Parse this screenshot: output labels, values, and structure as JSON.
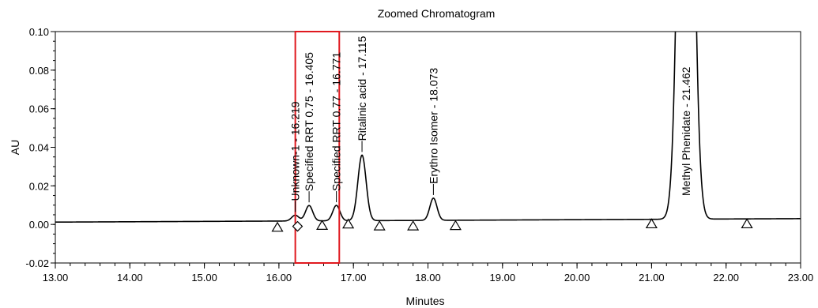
{
  "chart_data": {
    "type": "line",
    "title": "Zoomed Chromatogram",
    "xlabel": "Minutes",
    "ylabel": "AU",
    "xlim": [
      13.0,
      23.0
    ],
    "ylim": [
      -0.02,
      0.1
    ],
    "x_ticks": [
      "13.00",
      "14.00",
      "15.00",
      "16.00",
      "17.00",
      "18.00",
      "19.00",
      "20.00",
      "21.00",
      "22.00",
      "23.00"
    ],
    "y_ticks": [
      "-0.02",
      "0.00",
      "0.02",
      "0.04",
      "0.06",
      "0.08",
      "0.10"
    ],
    "grid": false,
    "baseline": [
      [
        13.0,
        0.0012
      ],
      [
        23.0,
        0.003
      ]
    ],
    "peaks": [
      {
        "label": "Unknown-1 - 16.219",
        "rt": 16.219,
        "height": 0.003
      },
      {
        "label": "Specified RRT 0.75 - 16.405",
        "rt": 16.405,
        "height": 0.008
      },
      {
        "label": "Specified RRT 0.77 - 16.771",
        "rt": 16.771,
        "height": 0.008
      },
      {
        "label": "Ritalinic acid - 17.115",
        "rt": 17.115,
        "height": 0.034
      },
      {
        "label": "Erythro Isomer - 18.073",
        "rt": 18.073,
        "height": 0.0115
      },
      {
        "label": "Methyl Phenidate - 21.462",
        "rt": 21.462,
        "height": 0.4
      }
    ],
    "integration_markers": [
      {
        "shape": "triangle",
        "x": 15.98,
        "y": -0.0015
      },
      {
        "shape": "diamond",
        "x": 16.25,
        "y": -0.001
      },
      {
        "shape": "triangle",
        "x": 16.58,
        "y": -0.0005
      },
      {
        "shape": "triangle",
        "x": 16.93,
        "y": 0.0002
      },
      {
        "shape": "triangle",
        "x": 17.35,
        "y": -0.0008
      },
      {
        "shape": "triangle",
        "x": 17.8,
        "y": -0.0008
      },
      {
        "shape": "triangle",
        "x": 18.37,
        "y": -0.0006
      },
      {
        "shape": "triangle",
        "x": 21.0,
        "y": 0.0003
      },
      {
        "shape": "triangle",
        "x": 22.28,
        "y": 0.0003
      }
    ],
    "highlight_box": {
      "x_range": [
        16.22,
        16.81
      ],
      "y_range": [
        -0.02,
        0.1
      ],
      "color": "#e0191f"
    }
  }
}
